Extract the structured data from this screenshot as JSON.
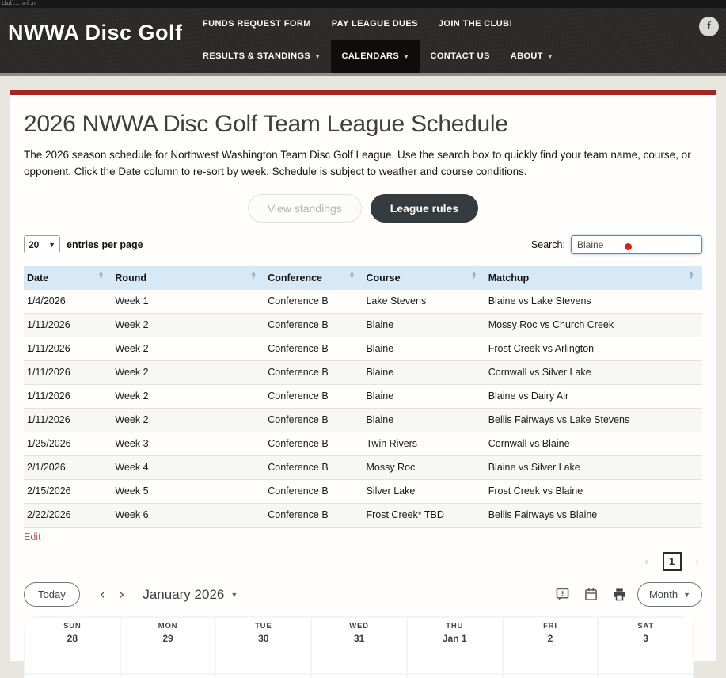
{
  "window": {
    "artifact_text": "Lkull...anl.n"
  },
  "header": {
    "logo": "NWWA Disc Golf",
    "facebook_icon": "f",
    "nav_row1": [
      {
        "label": "FUNDS REQUEST FORM",
        "dropdown": false,
        "active": false
      },
      {
        "label": "PAY LEAGUE DUES",
        "dropdown": false,
        "active": false
      },
      {
        "label": "JOIN THE CLUB!",
        "dropdown": false,
        "active": false
      }
    ],
    "nav_row2": [
      {
        "label": "RESULTS & STANDINGS",
        "dropdown": true,
        "active": false
      },
      {
        "label": "CALENDARS",
        "dropdown": true,
        "active": true
      },
      {
        "label": "CONTACT US",
        "dropdown": false,
        "active": false
      },
      {
        "label": "ABOUT",
        "dropdown": true,
        "active": false
      }
    ]
  },
  "page": {
    "title": "2026 NWWA Disc Golf Team League Schedule",
    "description": "The 2026 season schedule for Northwest Washington Team Disc Golf League. Use the search box to quickly find your team name, course, or opponent. Click the Date column to re-sort by week. Schedule is subject to weather and course conditions.",
    "view_standings_label": "View standings",
    "league_rules_label": "League rules"
  },
  "table_controls": {
    "page_size": "20",
    "entries_label": "entries per page",
    "search_label": "Search:",
    "search_value": "Blaine"
  },
  "table": {
    "columns": [
      "Date",
      "Round",
      "Conference",
      "Course",
      "Matchup"
    ],
    "rows": [
      [
        "1/4/2026",
        "Week 1",
        "Conference B",
        "Lake Stevens",
        "Blaine vs Lake Stevens"
      ],
      [
        "1/11/2026",
        "Week 2",
        "Conference B",
        "Blaine",
        "Mossy Roc vs Church Creek"
      ],
      [
        "1/11/2026",
        "Week 2",
        "Conference B",
        "Blaine",
        "Frost Creek vs Arlington"
      ],
      [
        "1/11/2026",
        "Week 2",
        "Conference B",
        "Blaine",
        "Cornwall vs Silver Lake"
      ],
      [
        "1/11/2026",
        "Week 2",
        "Conference B",
        "Blaine",
        "Blaine vs Dairy Air"
      ],
      [
        "1/11/2026",
        "Week 2",
        "Conference B",
        "Blaine",
        "Bellis Fairways vs Lake Stevens"
      ],
      [
        "1/25/2026",
        "Week 3",
        "Conference B",
        "Twin Rivers",
        "Cornwall vs Blaine"
      ],
      [
        "2/1/2026",
        "Week 4",
        "Conference B",
        "Mossy Roc",
        "Blaine vs Silver Lake"
      ],
      [
        "2/15/2026",
        "Week 5",
        "Conference B",
        "Silver Lake",
        "Frost Creek vs Blaine"
      ],
      [
        "2/22/2026",
        "Week 6",
        "Conference B",
        "Frost Creek* TBD",
        "Bellis Fairways vs Blaine"
      ]
    ]
  },
  "table_footer": {
    "edit_label": "Edit",
    "pagination": {
      "prev": "‹",
      "current": "1",
      "next": "›"
    }
  },
  "calendar": {
    "today_label": "Today",
    "prev": "‹",
    "next": "›",
    "title": "January 2026",
    "view_label": "Month",
    "icons": [
      "feedback-icon",
      "date-picker-icon",
      "print-icon"
    ],
    "days": [
      {
        "name": "SUN",
        "date": "28"
      },
      {
        "name": "MON",
        "date": "29"
      },
      {
        "name": "TUE",
        "date": "30"
      },
      {
        "name": "WED",
        "date": "31"
      },
      {
        "name": "THU",
        "date": "Jan 1"
      },
      {
        "name": "FRI",
        "date": "2"
      },
      {
        "name": "SAT",
        "date": "3"
      }
    ]
  },
  "colors": {
    "accent_red": "#a32521",
    "header_bg": "#2d2b29",
    "active_nav_bg": "#0e0d0c",
    "table_header_bg": "#d7e8f6",
    "edit_link": "#b0605c",
    "dark_button": "#363b40",
    "search_border": "#3f8fd6",
    "click_dot": "#e21b1b"
  }
}
